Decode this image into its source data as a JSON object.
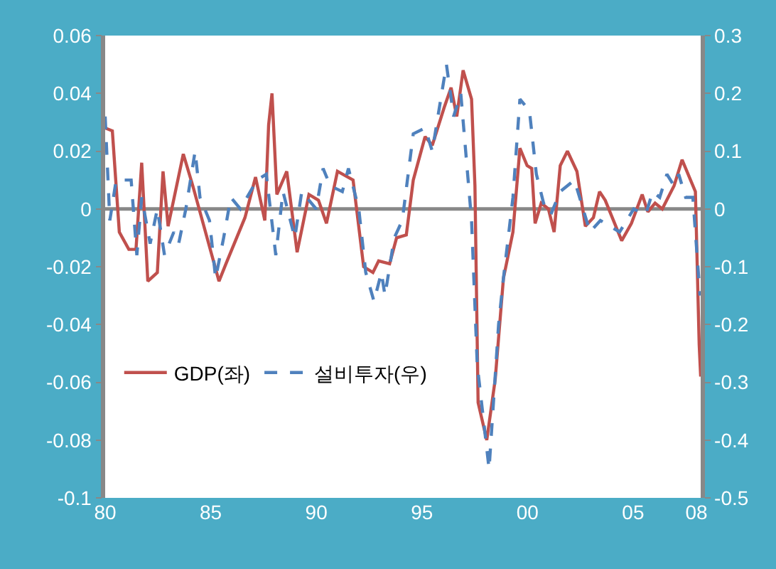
{
  "chart_data": {
    "type": "line",
    "xlim": [
      1980,
      2008.2
    ],
    "xticks": [
      {
        "value": 1980,
        "label": "80"
      },
      {
        "value": 1985,
        "label": "85"
      },
      {
        "value": 1990,
        "label": "90"
      },
      {
        "value": 1995,
        "label": "95"
      },
      {
        "value": 2000,
        "label": "00"
      },
      {
        "value": 2005,
        "label": "05"
      },
      {
        "value": 2008,
        "label": "08"
      }
    ],
    "ylim": [
      -0.1,
      0.06
    ],
    "yticks": [
      -0.1,
      -0.08,
      -0.06,
      -0.04,
      -0.02,
      0,
      0.02,
      0.04,
      0.06
    ],
    "y2lim": [
      -0.5,
      0.3
    ],
    "y2ticks": [
      -0.5,
      -0.4,
      -0.3,
      -0.2,
      -0.1,
      0,
      0.1,
      0.2,
      0.3
    ],
    "grid": false,
    "legend": "bottom left",
    "ref_lines": [
      {
        "axis": "y",
        "value": 0,
        "color": "#888888"
      }
    ],
    "series": [
      {
        "name": "GDP(좌)",
        "color": "#c0504d",
        "line_style": "solid",
        "x": [
          1980,
          1980.34,
          1980.67,
          1981.12,
          1981.46,
          1981.73,
          1982.02,
          1982.47,
          1982.74,
          1982.98,
          1983.7,
          1984.15,
          1985.39,
          1985.72,
          1986.62,
          1987.12,
          1987.56,
          1987.74,
          1987.9,
          1988.13,
          1988.6,
          1989.09,
          1989.65,
          1990.1,
          1990.48,
          1991,
          1991.74,
          1992.24,
          1992.68,
          1992.95,
          1993.47,
          1993.8,
          1994.26,
          1994.59,
          1995.15,
          1995.49,
          1996.05,
          1996.38,
          1996.65,
          1996.95,
          1997.35,
          1997.51,
          1997.66,
          1998.07,
          1998.47,
          1998.86,
          1999.31,
          1999.64,
          1999.98,
          2000.2,
          2000.36,
          2000.65,
          2000.99,
          2001.26,
          2001.55,
          2001.89,
          2002.34,
          2002.74,
          2003.12,
          2003.41,
          2003.68,
          2004.46,
          2004.92,
          2005.43,
          2005.7,
          2006.04,
          2006.38,
          2006.94,
          2007.32,
          2007.72,
          2007.95,
          2008.13,
          2008.2
        ],
        "values": [
          0.028,
          0.027,
          -0.008,
          -0.014,
          -0.014,
          0.016,
          -0.025,
          -0.022,
          0.013,
          -0.006,
          0.019,
          0.008,
          -0.025,
          -0.019,
          -0.003,
          0.011,
          -0.004,
          0.029,
          0.04,
          0.005,
          0.013,
          -0.015,
          0.005,
          0.003,
          -0.005,
          0.013,
          0.01,
          -0.02,
          -0.022,
          -0.018,
          -0.019,
          -0.01,
          -0.009,
          0.01,
          0.025,
          0.022,
          0.035,
          0.042,
          0.032,
          0.048,
          0.038,
          0.008,
          -0.067,
          -0.08,
          -0.059,
          -0.024,
          -0.008,
          0.021,
          0.015,
          0.014,
          -0.005,
          0.002,
          0,
          -0.008,
          0.015,
          0.02,
          0.013,
          -0.006,
          -0.003,
          0.006,
          0.003,
          -0.011,
          -0.005,
          0.005,
          -0.001,
          0.002,
          0,
          0.008,
          0.017,
          0.01,
          0.006,
          -0.047,
          -0.058
        ]
      },
      {
        "name": "설비투자(우)",
        "color": "#4f81bd",
        "line_style": "dashed",
        "axis": "y2",
        "x": [
          1980,
          1980.22,
          1980.52,
          1981.23,
          1981.5,
          1981.73,
          1982.13,
          1982.47,
          1982.81,
          1983.25,
          1983.48,
          1983.82,
          1984.26,
          1984.49,
          1984.94,
          1985.23,
          1985.61,
          1985.95,
          1986.4,
          1987.19,
          1987.63,
          1988.08,
          1988.42,
          1988.98,
          1989.31,
          1989.99,
          1990.32,
          1990.66,
          1991.23,
          1991.52,
          1992.01,
          1992.34,
          1992.73,
          1993.08,
          1993.25,
          1993.69,
          1994.07,
          1994.59,
          1995.15,
          1995.49,
          1996.16,
          1996.5,
          1996.84,
          1997.35,
          1997.62,
          1998.18,
          1998.63,
          1998.86,
          1999.31,
          1999.64,
          2000.09,
          2000.42,
          2000.76,
          2001.1,
          2001.55,
          2002.22,
          2002.96,
          2003.45,
          2004.36,
          2005.03,
          2005.59,
          2005.93,
          2006.26,
          2006.6,
          2006.94,
          2007.16,
          2007.49,
          2007.83,
          2008.17
        ],
        "values": [
          0.16,
          -0.02,
          0.05,
          0.05,
          -0.08,
          0.02,
          -0.06,
          0,
          -0.08,
          -0.04,
          -0.06,
          0,
          0.1,
          0.02,
          -0.02,
          -0.12,
          -0.05,
          0.02,
          0,
          0.05,
          0.06,
          -0.08,
          0.03,
          -0.05,
          0.03,
          0,
          0.07,
          0.04,
          0.03,
          0.07,
          0,
          -0.11,
          -0.16,
          -0.11,
          -0.15,
          -0.05,
          -0.02,
          0.13,
          0.14,
          0.1,
          0.25,
          0.16,
          0.2,
          -0.02,
          -0.27,
          -0.45,
          -0.2,
          -0.12,
          0.02,
          0.19,
          0.17,
          0.06,
          0.01,
          -0.01,
          0.03,
          0.05,
          -0.04,
          -0.02,
          -0.04,
          0,
          -0.01,
          0.03,
          0.02,
          0.06,
          0.04,
          0.06,
          0.02,
          0.02,
          -0.15
        ]
      }
    ]
  }
}
